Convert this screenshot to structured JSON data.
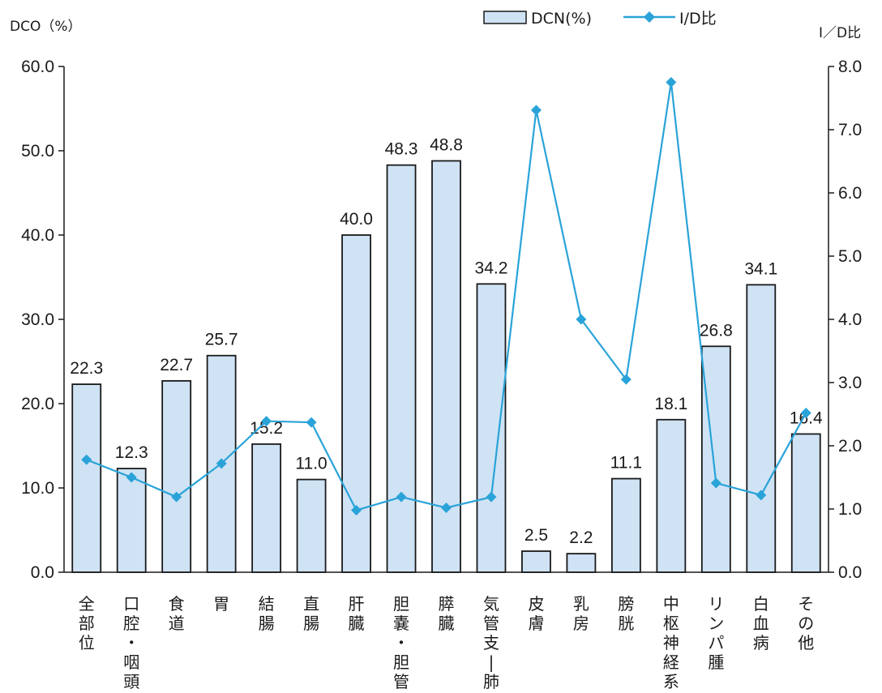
{
  "chart_data": {
    "type": "bar",
    "left_axis_title": "DCO（%）",
    "right_axis_title": "I／D比",
    "categories": [
      "全部位",
      "口腔・咽頭",
      "食道",
      "胃",
      "結腸",
      "直腸",
      "肝臓",
      "胆嚢・胆管",
      "膵臓",
      "気管支−肺",
      "皮膚",
      "乳房",
      "膀胱",
      "中枢神経系",
      "リンパ腫",
      "白血病",
      "その他"
    ],
    "category_label_lines": [
      [
        "全",
        "部",
        "位"
      ],
      [
        "口",
        "腔",
        "・",
        "咽",
        "頭"
      ],
      [
        "食",
        "道"
      ],
      [
        "胃"
      ],
      [
        "結",
        "腸"
      ],
      [
        "直",
        "腸"
      ],
      [
        "肝",
        "臓"
      ],
      [
        "胆",
        "嚢",
        "・",
        "胆",
        "管"
      ],
      [
        "膵",
        "臓"
      ],
      [
        "気",
        "管",
        "支",
        "|",
        "肺"
      ],
      [
        "皮",
        "膚"
      ],
      [
        "乳",
        "房"
      ],
      [
        "膀",
        "胱"
      ],
      [
        "中",
        "枢",
        "神",
        "経",
        "系"
      ],
      [
        "リ",
        "ン",
        "パ",
        "腫"
      ],
      [
        "白",
        "血",
        "病"
      ],
      [
        "そ",
        "の",
        "他"
      ]
    ],
    "series": [
      {
        "name": "DCN(%)",
        "type": "bar",
        "axis": "left",
        "values": [
          22.3,
          12.3,
          22.7,
          25.7,
          15.2,
          11.0,
          40.0,
          48.3,
          48.8,
          34.2,
          2.5,
          2.2,
          11.1,
          18.1,
          26.8,
          34.1,
          16.4
        ],
        "labels": [
          "22.3",
          "12.3",
          "22.7",
          "25.7",
          "15.2",
          "11.0",
          "40.0",
          "48.3",
          "48.8",
          "34.2",
          "2.5",
          "2.2",
          "11.1",
          "18.1",
          "26.8",
          "34.1",
          "16.4"
        ],
        "color": "#cfe3f5",
        "border": "#1a1a1a"
      },
      {
        "name": "I/D比",
        "type": "line",
        "axis": "right",
        "values": [
          1.78,
          1.5,
          1.19,
          1.72,
          2.39,
          2.37,
          0.98,
          1.19,
          1.02,
          1.19,
          7.31,
          4.0,
          3.05,
          7.75,
          1.41,
          1.22,
          2.52
        ],
        "color": "#2aa3d8"
      }
    ],
    "ylim_left": [
      0,
      60
    ],
    "ylim_right": [
      0,
      8
    ],
    "yticks_left": [
      "0.0",
      "10.0",
      "20.0",
      "30.0",
      "40.0",
      "50.0",
      "60.0"
    ],
    "yticks_right": [
      "0.0",
      "1.0",
      "2.0",
      "3.0",
      "4.0",
      "5.0",
      "6.0",
      "7.0",
      "8.0"
    ],
    "grid": false,
    "legend_position": "top"
  }
}
